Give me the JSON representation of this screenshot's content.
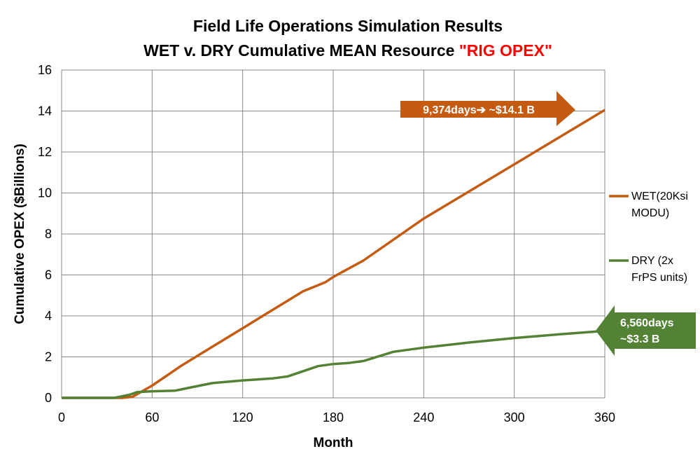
{
  "chart_data": {
    "type": "line",
    "title_line1": "Field Life Operations Simulation Results",
    "title_line2_prefix": "WET v. DRY Cumulative MEAN Resource ",
    "title_line2_highlight": "\"RIG OPEX\"",
    "title_highlight_color": "#ff0000",
    "xlabel": "Month",
    "ylabel": "Cumulative OPEX ($Billions)",
    "xlim": [
      0,
      360
    ],
    "ylim": [
      0,
      16
    ],
    "x_ticks": [
      0,
      60,
      120,
      180,
      240,
      300,
      360
    ],
    "y_ticks": [
      0,
      2,
      4,
      6,
      8,
      10,
      12,
      14,
      16
    ],
    "grid": true,
    "legend_position": "right",
    "series": [
      {
        "name_lines": [
          "WET(20Ksi",
          "MODU)"
        ],
        "color": "#c55a11",
        "x": [
          0,
          30,
          40,
          47,
          60,
          80,
          100,
          120,
          140,
          160,
          175,
          180,
          200,
          240,
          300,
          360
        ],
        "y": [
          0,
          0,
          0,
          0.05,
          0.6,
          1.6,
          2.5,
          3.4,
          4.3,
          5.2,
          5.65,
          5.9,
          6.7,
          8.75,
          11.4,
          14.05
        ]
      },
      {
        "name_lines": [
          "DRY (2x",
          "FrPS units)"
        ],
        "color": "#548235",
        "x": [
          0,
          35,
          45,
          50,
          60,
          75,
          85,
          100,
          120,
          140,
          150,
          170,
          180,
          190,
          200,
          220,
          240,
          270,
          300,
          330,
          360
        ],
        "y": [
          0,
          0,
          0.15,
          0.28,
          0.32,
          0.35,
          0.5,
          0.72,
          0.85,
          0.95,
          1.05,
          1.55,
          1.65,
          1.7,
          1.8,
          2.25,
          2.45,
          2.7,
          2.92,
          3.1,
          3.27
        ]
      }
    ],
    "annotations": [
      {
        "line1": "9,374days➔ ~$14.1 B",
        "line2": "",
        "color": "#c55a11",
        "direction": "right"
      },
      {
        "line1": "6,560days",
        "line2": "~$3.3 B",
        "color": "#548235",
        "direction": "left"
      }
    ]
  }
}
